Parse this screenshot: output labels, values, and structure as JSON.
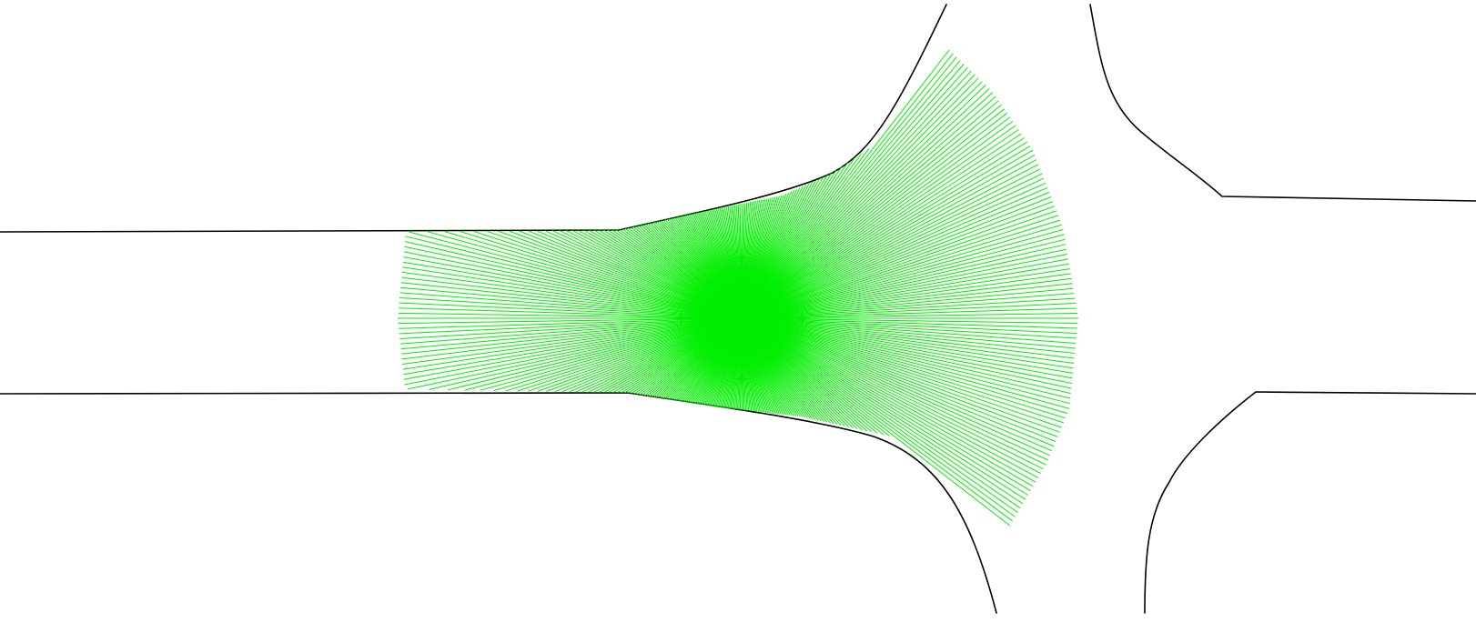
{
  "colors": {
    "background": "#ffffff",
    "road_edge": "#000000",
    "scan_rays": "#00ee00"
  },
  "scan": {
    "ray_count": 420
  }
}
